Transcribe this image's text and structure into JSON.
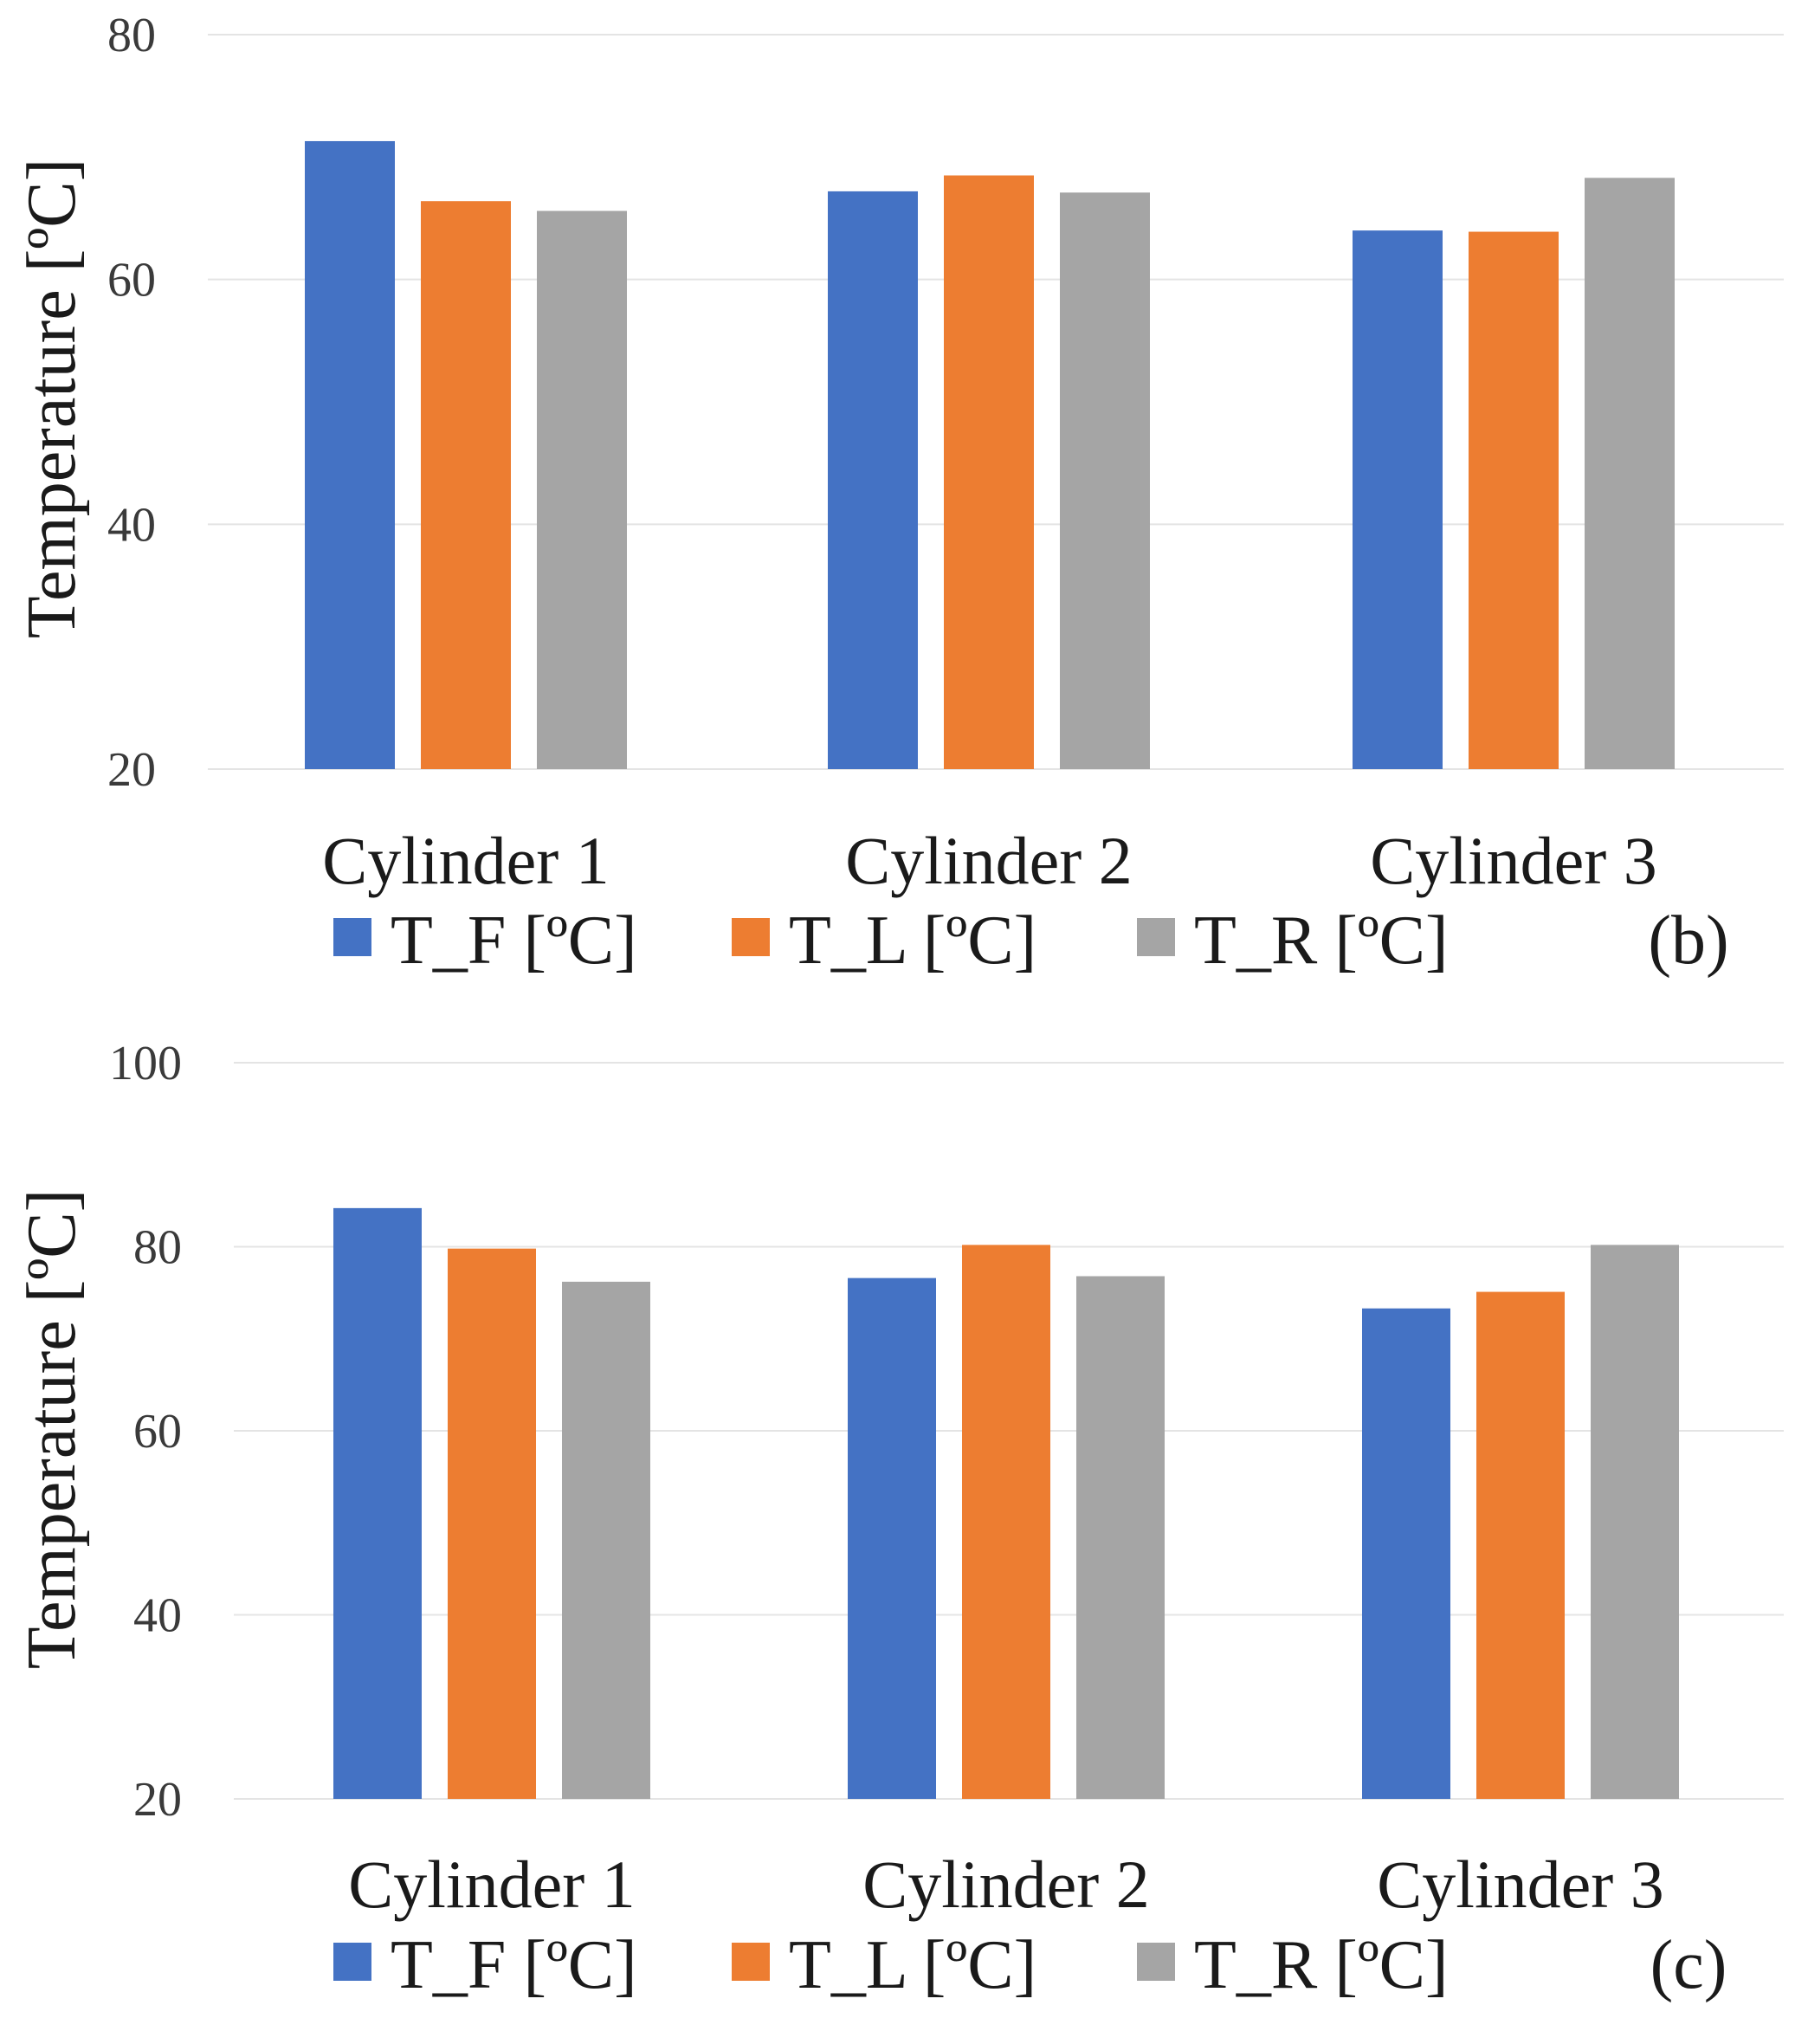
{
  "chart_data": [
    {
      "type": "bar",
      "panel_label": "(b)",
      "ylabel": "Temperature [ºC]",
      "ylim": [
        20,
        80
      ],
      "yticks": [
        "20",
        "40",
        "60",
        "80"
      ],
      "categories": [
        "Cylinder 1",
        "Cylinder 2",
        "Cylinder 3"
      ],
      "series": [
        {
          "name": "T_F [ºC]",
          "color": "#4472c4",
          "values": [
            71.3,
            67.2,
            64.0
          ]
        },
        {
          "name": "T_L [ºC]",
          "color": "#ed7d31",
          "values": [
            66.4,
            68.5,
            63.9
          ]
        },
        {
          "name": "T_R [ºC]",
          "color": "#a5a5a5",
          "values": [
            65.6,
            67.1,
            68.3
          ]
        }
      ],
      "grid": true,
      "legend_position": "bottom"
    },
    {
      "type": "bar",
      "panel_label": "(c)",
      "ylabel": "Temperature [ºC]",
      "ylim": [
        20,
        100
      ],
      "yticks": [
        "20",
        "40",
        "60",
        "80",
        "100"
      ],
      "categories": [
        "Cylinder 1",
        "Cylinder 2",
        "Cylinder 3"
      ],
      "series": [
        {
          "name": "T_F [ºC]",
          "color": "#4472c4",
          "values": [
            84.2,
            76.6,
            73.3
          ]
        },
        {
          "name": "T_L [ºC]",
          "color": "#ed7d31",
          "values": [
            79.8,
            80.2,
            75.1
          ]
        },
        {
          "name": "T_R [ºC]",
          "color": "#a5a5a5",
          "values": [
            76.2,
            76.8,
            80.2
          ]
        }
      ],
      "grid": true,
      "legend_position": "bottom"
    }
  ]
}
